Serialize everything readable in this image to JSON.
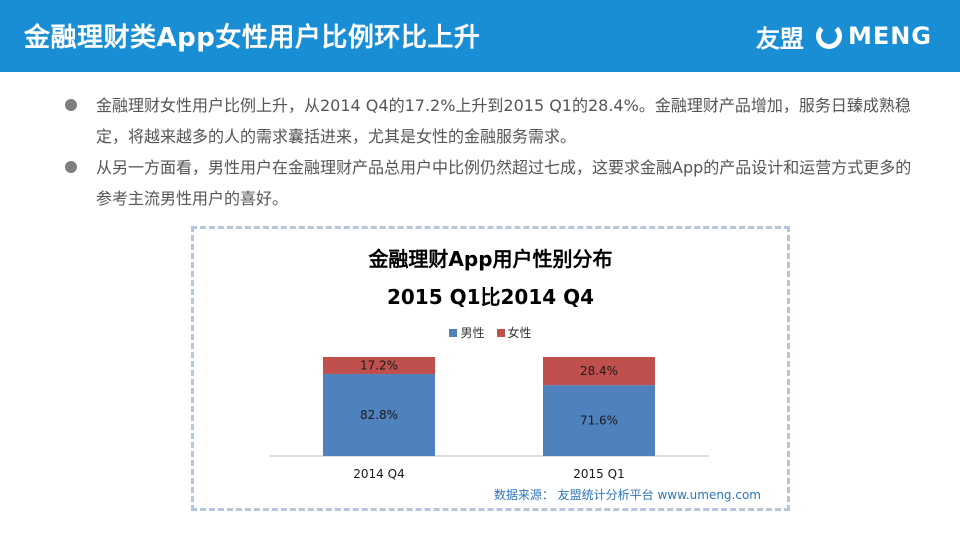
{
  "header": {
    "title": "金融理财类App女性用户比例环比上升",
    "logo_cn": "友盟",
    "logo_en": "MENG"
  },
  "bullets": [
    "金融理财女性用户比例上升，从2014 Q4的17.2%上升到2015 Q1的28.4%。金融理财产品增加，服务日臻成熟稳定，将越来越多的人的需求囊括进来，尤其是女性的金融服务需求。",
    "从另一方面看，男性用户在金融理财产品总用户中比例仍然超过七成，这要求金融App的产品设计和运营方式更多的参考主流男性用户的喜好。"
  ],
  "chart_data": {
    "type": "bar",
    "stacked": true,
    "title": "金融理财App用户性别分布",
    "subtitle": "2015 Q1比2014  Q4",
    "categories": [
      "2014 Q4",
      "2015 Q1"
    ],
    "series": [
      {
        "name": "男性",
        "values": [
          82.8,
          71.6
        ],
        "labels": [
          "82.8%",
          "71.6%"
        ],
        "color": "#4f81bd"
      },
      {
        "name": "女性",
        "values": [
          17.2,
          28.4
        ],
        "labels": [
          "17.2%",
          "28.4%"
        ],
        "color": "#c0504d"
      }
    ],
    "ylim": [
      0,
      100
    ],
    "legend_position": "top-center",
    "grid": false,
    "xlabel": "",
    "ylabel": ""
  },
  "source": "数据来源： 友盟统计分析平台 www.umeng.com",
  "colors": {
    "header_bg": "#1a8ed4",
    "frame_border": "#b4c7dc",
    "source_text": "#2e75b6"
  }
}
